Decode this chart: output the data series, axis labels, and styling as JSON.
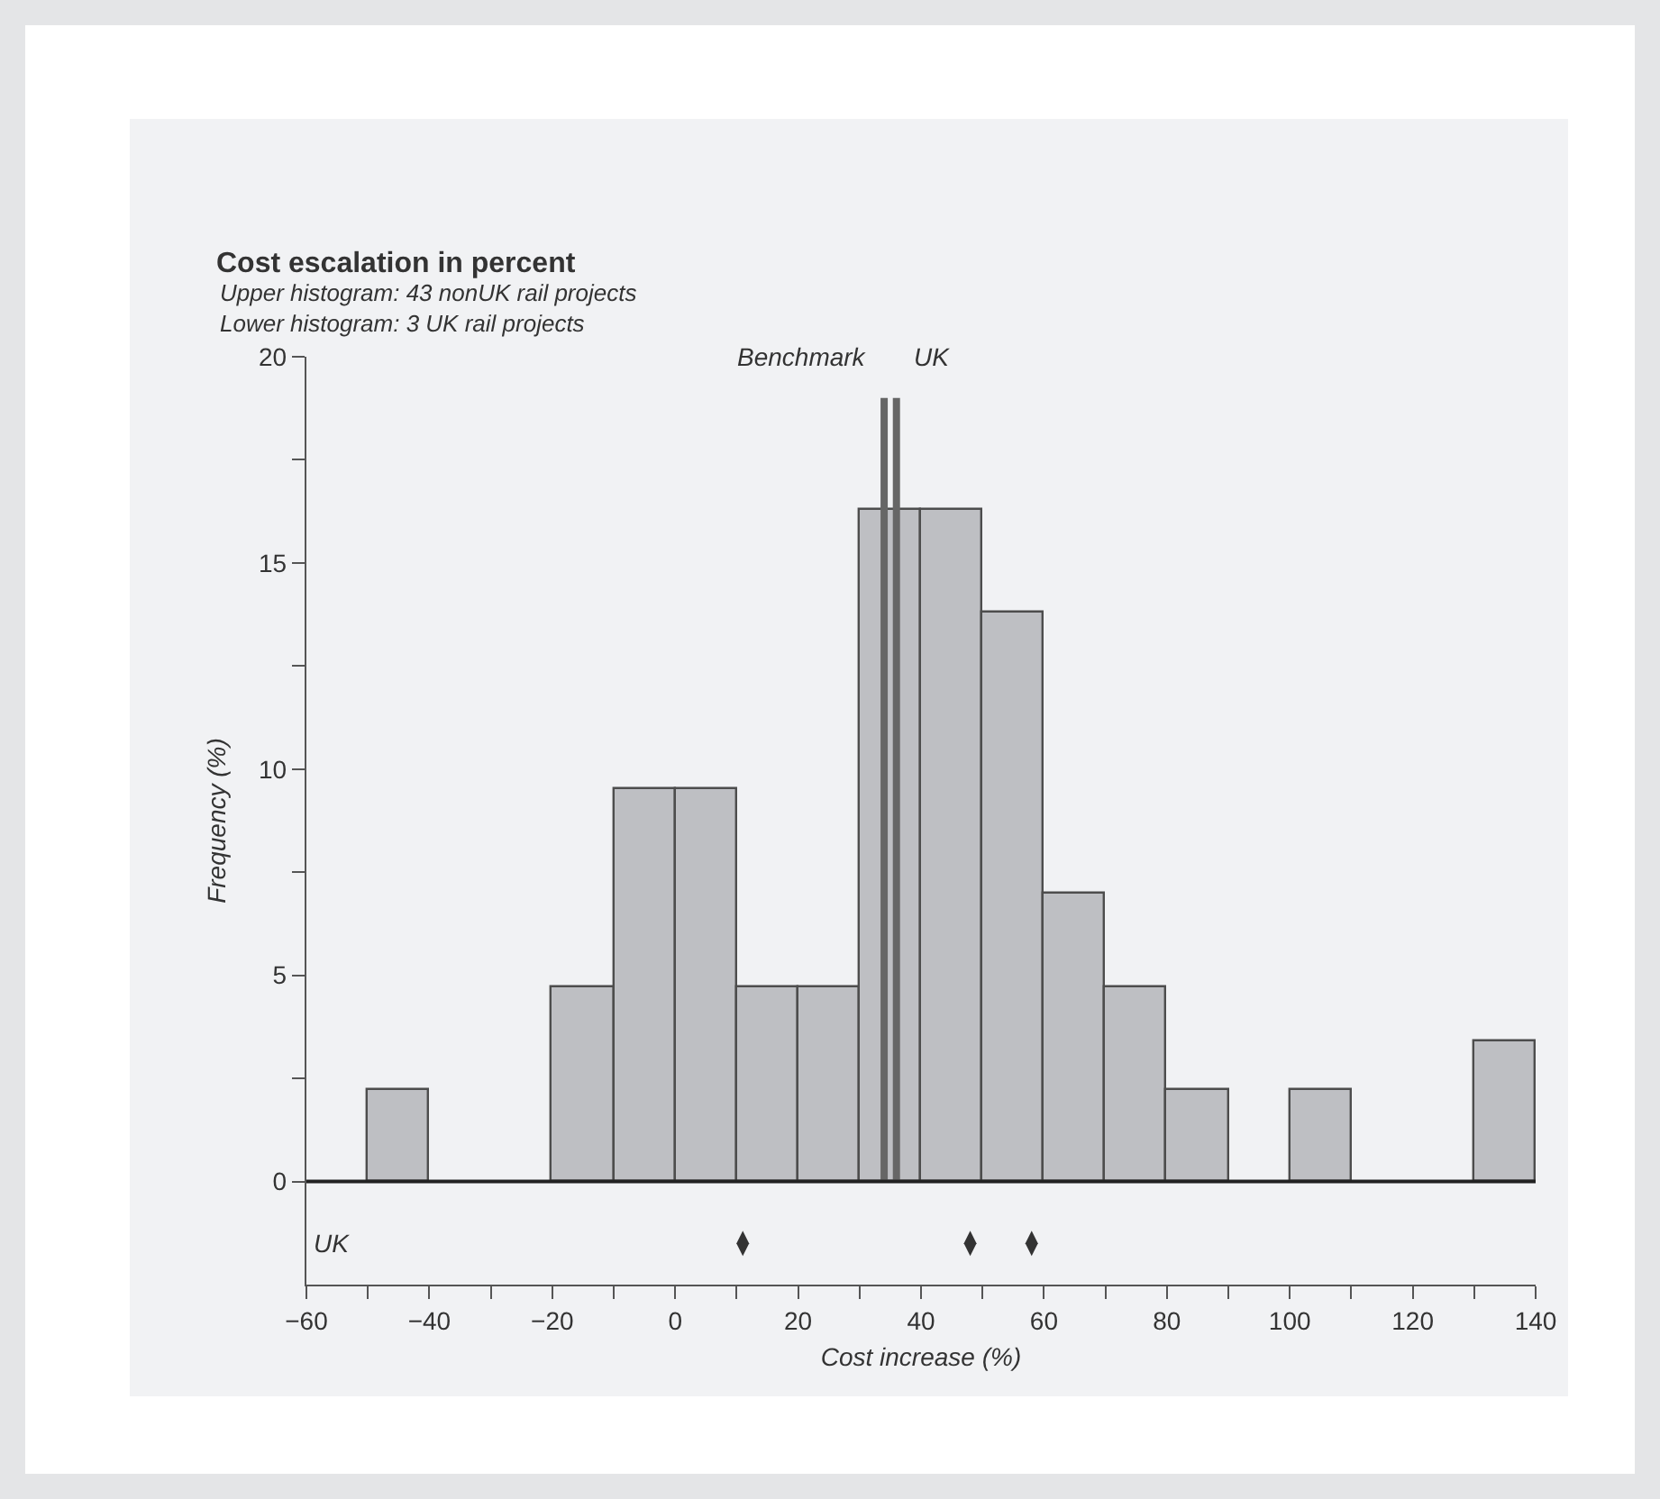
{
  "chart_data": {
    "type": "histogram",
    "title": "Cost escalation in percent",
    "subtitle": "Upper histogram: 43 nonUK rail projects\nLower histogram: 3 UK rail projects",
    "xlabel": "Cost increase (%)",
    "ylabel": "Frequency (%)",
    "bins": [
      -60,
      -50,
      -40,
      -30,
      -20,
      -10,
      0,
      10,
      20,
      30,
      40,
      50,
      60,
      70,
      80,
      90,
      100,
      110,
      120,
      130,
      140
    ],
    "values": [
      0,
      2.2,
      0,
      0,
      4.7,
      9.5,
      9.5,
      4.7,
      4.7,
      16.3,
      16.3,
      13.8,
      7.0,
      4.7,
      2.2,
      0,
      2.2,
      0,
      0,
      3.4
    ],
    "color": "#bebfc3",
    "series": [
      {
        "type": "scatter",
        "name": "UK",
        "color": "#333333",
        "x": [
          11,
          48,
          58
        ],
        "values": [
          -1.5,
          -1.5,
          -1.5
        ]
      }
    ],
    "ref_lines": [
      {
        "axis": "x",
        "value": 34,
        "label": "Benchmark",
        "color": "#666666"
      },
      {
        "axis": "x",
        "value": 36,
        "label": "UK",
        "color": "#666666"
      },
      {
        "axis": "y",
        "value": 0,
        "color": "#222222"
      }
    ],
    "xlim": [
      -60,
      140
    ],
    "xticks": [
      -60,
      {
        "value": -50,
        "label": null
      },
      {
        "value": -40,
        "label": "−40"
      },
      {
        "value": -30,
        "label": null
      },
      {
        "value": -20,
        "label": "−20"
      },
      {
        "value": -10,
        "label": null
      },
      0,
      {
        "value": 10,
        "label": null
      },
      20,
      {
        "value": 30,
        "label": null
      },
      40,
      {
        "value": 50,
        "label": null
      },
      60,
      {
        "value": 70,
        "label": null
      },
      80,
      {
        "value": 90,
        "label": null
      },
      100,
      {
        "value": 110,
        "label": null
      },
      120,
      {
        "value": 130,
        "label": null
      },
      140
    ],
    "ylim": [
      -2.5,
      20
    ],
    "yticks": [
      0,
      {
        "value": 2.5,
        "label": null
      },
      5,
      {
        "value": 7.5,
        "label": null
      },
      10,
      {
        "value": 12.5,
        "label": null
      },
      15,
      {
        "value": 17.5,
        "label": null
      },
      20
    ],
    "grid": false,
    "legend": false
  }
}
